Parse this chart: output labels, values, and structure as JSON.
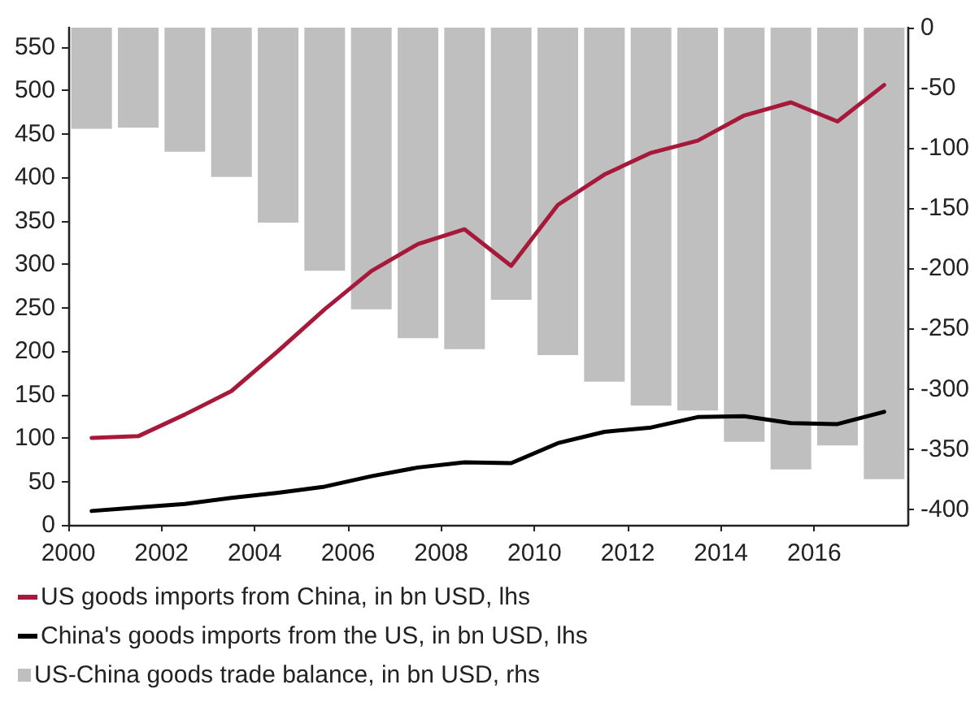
{
  "chart_data": {
    "type": "line",
    "x": [
      2000.5,
      2001.5,
      2002.5,
      2003.5,
      2004.5,
      2005.5,
      2006.5,
      2007.5,
      2008.5,
      2009.5,
      2010.5,
      2011.5,
      2012.5,
      2013.5,
      2014.5,
      2015.5,
      2016.5,
      2017.5
    ],
    "series": [
      {
        "name": "US-China goods trade balance, in bn USD, rhs",
        "type": "bar",
        "axis": "y2",
        "color": "#bfbfbf",
        "values": [
          -84,
          -83,
          -103,
          -124,
          -162,
          -202,
          -234,
          -258,
          -267,
          -226,
          -272,
          -294,
          -314,
          -318,
          -344,
          -367,
          -347,
          -375
        ]
      },
      {
        "name": "US goods imports from China, in bn USD, lhs",
        "color": "#a6193a",
        "values": [
          100,
          102,
          127,
          154,
          200,
          248,
          292,
          323,
          340,
          298,
          368,
          403,
          428,
          442,
          471,
          486,
          464,
          506
        ]
      },
      {
        "name": "China's goods imports from the US, in bn USD, lhs",
        "color": "#000000",
        "values": [
          16,
          20,
          24,
          31,
          37,
          44,
          56,
          66,
          72,
          71,
          94,
          107,
          112,
          124,
          125,
          117,
          116,
          130
        ]
      }
    ],
    "xlim": [
      2000,
      2018
    ],
    "xticks": [
      2000,
      2002,
      2004,
      2006,
      2008,
      2010,
      2012,
      2014,
      2016
    ],
    "ylim": [
      0,
      572
    ],
    "yticks": [
      0,
      50,
      100,
      150,
      200,
      250,
      300,
      350,
      400,
      450,
      500,
      550
    ],
    "y2lim": [
      -413,
      0
    ],
    "y2ticks": [
      -400,
      -350,
      -300,
      -250,
      -200,
      -150,
      -100,
      -50,
      0
    ],
    "legend": "bottom",
    "grid": false,
    "marker": "none",
    "line_style": "solid"
  }
}
